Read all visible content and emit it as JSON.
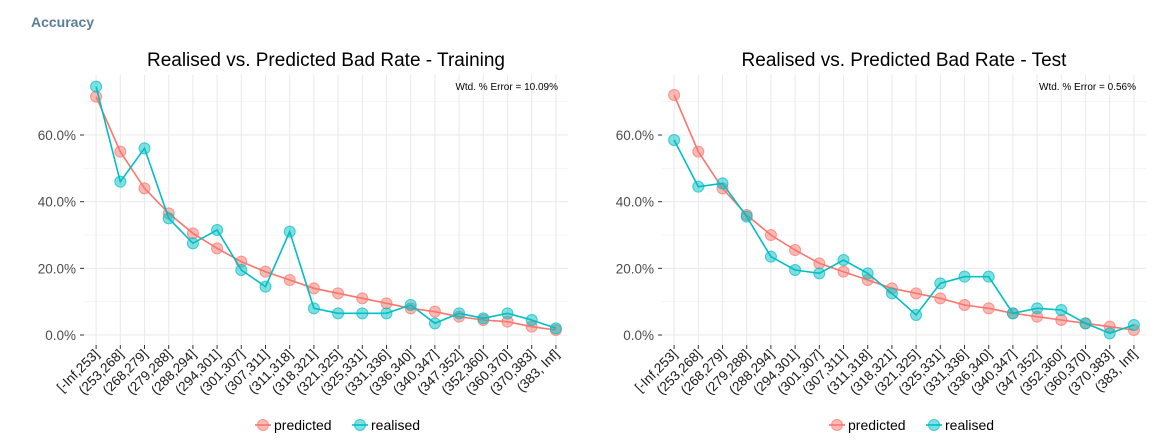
{
  "section_title": "Accuracy",
  "colors": {
    "predicted": "#F8766D",
    "realised": "#00BFC4",
    "grid": "#ebebeb",
    "title": "#5b7d9c"
  },
  "legend": {
    "items": [
      "predicted",
      "realised"
    ]
  },
  "chart_data": [
    {
      "type": "line",
      "title": "Realised vs. Predicted Bad Rate - Training",
      "annotation": "Wtd. % Error = 10.09%",
      "xlabel": "",
      "ylabel": "",
      "ylim": [
        -0.03,
        0.78
      ],
      "y_ticks": [
        0.0,
        0.2,
        0.4,
        0.6
      ],
      "y_tick_labels": [
        "0.0%",
        "20.0%",
        "40.0%",
        "60.0%"
      ],
      "grid": true,
      "legend_position": "bottom",
      "categories": [
        "[-Inf,253]",
        "(253,268]",
        "(268,279]",
        "(279,288]",
        "(288,294]",
        "(294,301]",
        "(301,307]",
        "(307,311]",
        "(311,318]",
        "(318,321]",
        "(321,325]",
        "(325,331]",
        "(331,336]",
        "(336,340]",
        "(340,347]",
        "(347,352]",
        "(352,360]",
        "(360,370]",
        "(370,383]",
        "(383, Inf]"
      ],
      "series": [
        {
          "name": "predicted",
          "values": [
            0.715,
            0.55,
            0.44,
            0.365,
            0.305,
            0.26,
            0.22,
            0.19,
            0.165,
            0.14,
            0.125,
            0.11,
            0.095,
            0.08,
            0.07,
            0.055,
            0.045,
            0.04,
            0.025,
            0.015
          ]
        },
        {
          "name": "realised",
          "values": [
            0.745,
            0.46,
            0.56,
            0.35,
            0.275,
            0.315,
            0.195,
            0.145,
            0.31,
            0.08,
            0.065,
            0.065,
            0.065,
            0.09,
            0.035,
            0.065,
            0.05,
            0.065,
            0.045,
            0.02
          ]
        }
      ]
    },
    {
      "type": "line",
      "title": "Realised vs. Predicted Bad Rate - Test",
      "annotation": "Wtd. % Error = 0.56%",
      "xlabel": "",
      "ylabel": "",
      "ylim": [
        -0.03,
        0.78
      ],
      "y_ticks": [
        0.0,
        0.2,
        0.4,
        0.6
      ],
      "y_tick_labels": [
        "0.0%",
        "20.0%",
        "40.0%",
        "60.0%"
      ],
      "grid": true,
      "legend_position": "bottom",
      "categories": [
        "[-Inf,253]",
        "(253,268]",
        "(268,279]",
        "(279,288]",
        "(288,294]",
        "(294,301]",
        "(301,307]",
        "(307,311]",
        "(311,318]",
        "(318,321]",
        "(321,325]",
        "(325,331]",
        "(331,336]",
        "(336,340]",
        "(340,347]",
        "(347,352]",
        "(352,360]",
        "(360,370]",
        "(370,383]",
        "(383, Inf]"
      ],
      "series": [
        {
          "name": "predicted",
          "values": [
            0.72,
            0.55,
            0.44,
            0.36,
            0.3,
            0.255,
            0.215,
            0.19,
            0.165,
            0.14,
            0.125,
            0.11,
            0.09,
            0.08,
            0.065,
            0.055,
            0.045,
            0.035,
            0.025,
            0.015
          ]
        },
        {
          "name": "realised",
          "values": [
            0.585,
            0.445,
            0.455,
            0.355,
            0.235,
            0.195,
            0.185,
            0.225,
            0.185,
            0.125,
            0.06,
            0.155,
            0.175,
            0.175,
            0.065,
            0.08,
            0.075,
            0.035,
            0.005,
            0.03
          ]
        }
      ]
    }
  ]
}
